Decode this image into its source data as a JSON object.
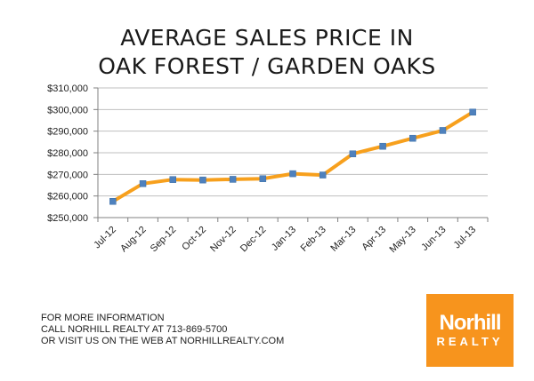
{
  "chart_data": {
    "type": "line",
    "title": "AVERAGE SALES PRICE IN",
    "subtitle": "OAK FOREST / GARDEN OAKS",
    "xlabel": "",
    "ylabel": "",
    "categories": [
      "Jul-12",
      "Aug-12",
      "Sep-12",
      "Oct-12",
      "Nov-12",
      "Dec-12",
      "Jan-13",
      "Feb-13",
      "Mar-13",
      "Apr-13",
      "May-13",
      "Jun-13",
      "Jul-13"
    ],
    "series": [
      {
        "values": [
          257500,
          265700,
          267600,
          267400,
          267700,
          268000,
          270300,
          269700,
          279500,
          283000,
          286700,
          290300,
          298800
        ]
      }
    ],
    "ylim": [
      250000,
      310000
    ],
    "yticks": [
      250000,
      260000,
      270000,
      280000,
      290000,
      300000,
      310000
    ],
    "ytick_labels": [
      "$250,000",
      "$260,000",
      "$270,000",
      "$280,000",
      "$290,000",
      "$300,000",
      "$310,000"
    ],
    "grid": true,
    "legend": "none",
    "colors": {
      "line": "#f7a01d",
      "marker": "#4f81bd",
      "grid": "#bfbfbf",
      "axis": "#808080"
    }
  },
  "footer": {
    "line1": "FOR MORE INFORMATION",
    "line2": "CALL NORHILL REALTY AT 713-869-5700",
    "line3": "OR VISIT US ON THE WEB AT NORHILLREALTY.COM"
  },
  "logo": {
    "name": "Norhill",
    "sub": "REALTY",
    "color": "#f7941d"
  }
}
